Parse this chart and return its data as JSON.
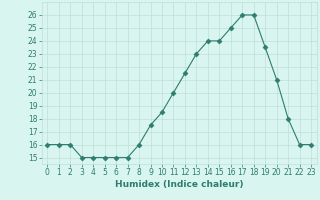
{
  "x": [
    0,
    1,
    2,
    3,
    4,
    5,
    6,
    7,
    8,
    9,
    10,
    11,
    12,
    13,
    14,
    15,
    16,
    17,
    18,
    19,
    20,
    21,
    22,
    23
  ],
  "y": [
    16,
    16,
    16,
    15,
    15,
    15,
    15,
    15,
    16,
    17.5,
    18.5,
    20,
    21.5,
    23,
    24,
    24,
    25,
    26,
    26,
    23.5,
    21,
    18,
    16,
    16
  ],
  "line_color": "#2e7d6e",
  "marker": "D",
  "marker_size": 2.5,
  "bg_color": "#d9f5f0",
  "grid_color": "#c0ddd8",
  "xlabel": "Humidex (Indice chaleur)",
  "ylim": [
    14.5,
    27
  ],
  "yticks": [
    15,
    16,
    17,
    18,
    19,
    20,
    21,
    22,
    23,
    24,
    25,
    26
  ],
  "xticks": [
    0,
    1,
    2,
    3,
    4,
    5,
    6,
    7,
    8,
    9,
    10,
    11,
    12,
    13,
    14,
    15,
    16,
    17,
    18,
    19,
    20,
    21,
    22,
    23
  ],
  "xlim": [
    -0.5,
    23.5
  ],
  "tick_label_fontsize": 5.5,
  "xlabel_fontsize": 6.5,
  "tick_color": "#2e7d6e",
  "label_color": "#2e7d6e"
}
